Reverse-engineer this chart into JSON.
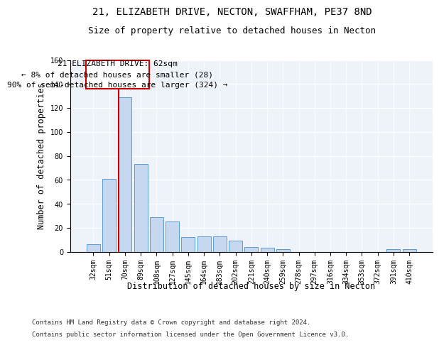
{
  "title_line1": "21, ELIZABETH DRIVE, NECTON, SWAFFHAM, PE37 8ND",
  "title_line2": "Size of property relative to detached houses in Necton",
  "xlabel": "Distribution of detached houses by size in Necton",
  "ylabel": "Number of detached properties",
  "bar_color": "#c5d8f0",
  "bar_edge_color": "#5b9bd5",
  "background_color": "#eef2f9",
  "grid_color": "#ffffff",
  "categories": [
    "32sqm",
    "51sqm",
    "70sqm",
    "89sqm",
    "108sqm",
    "127sqm",
    "145sqm",
    "164sqm",
    "183sqm",
    "202sqm",
    "221sqm",
    "240sqm",
    "259sqm",
    "278sqm",
    "297sqm",
    "316sqm",
    "334sqm",
    "353sqm",
    "372sqm",
    "391sqm",
    "410sqm"
  ],
  "values": [
    6,
    61,
    129,
    73,
    29,
    25,
    12,
    13,
    13,
    9,
    4,
    3,
    2,
    0,
    0,
    0,
    0,
    0,
    0,
    2,
    2
  ],
  "ylim": [
    0,
    160
  ],
  "yticks": [
    0,
    20,
    40,
    60,
    80,
    100,
    120,
    140,
    160
  ],
  "red_line_x": 1.58,
  "annotation_box_text": "21 ELIZABETH DRIVE: 62sqm\n← 8% of detached houses are smaller (28)\n90% of semi-detached houses are larger (324) →",
  "footer_line1": "Contains HM Land Registry data © Crown copyright and database right 2024.",
  "footer_line2": "Contains public sector information licensed under the Open Government Licence v3.0.",
  "red_line_color": "#cc0000",
  "annotation_text_color": "#000000",
  "title_fontsize": 10,
  "subtitle_fontsize": 9,
  "tick_fontsize": 7,
  "ylabel_fontsize": 8.5,
  "xlabel_fontsize": 8.5,
  "footer_fontsize": 6.5,
  "annot_fontsize": 8
}
